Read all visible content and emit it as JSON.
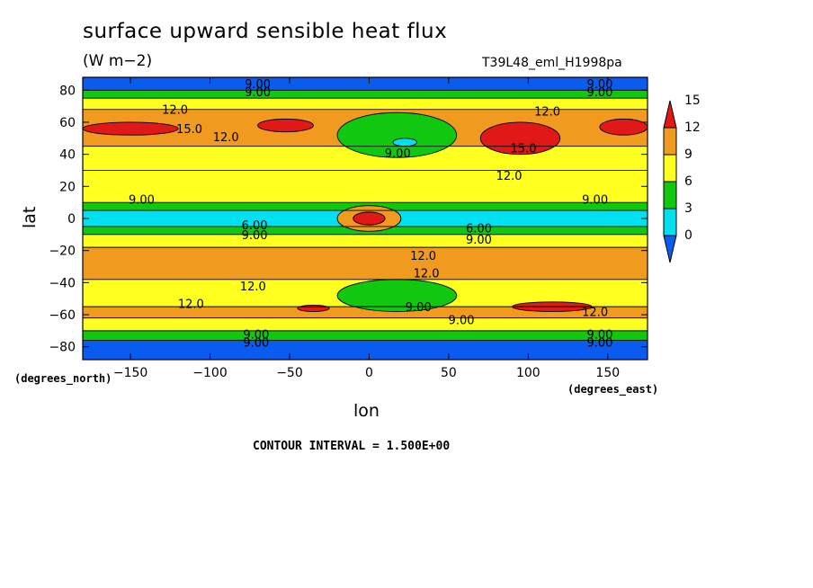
{
  "chart_data": {
    "type": "heatmap",
    "title": "surface upward sensible heat flux",
    "units": "(W m−2)",
    "experiment": "T39L48_eml_H1998pa",
    "xlabel": "lon",
    "ylabel": "lat",
    "x_unit_label": "(degrees_east)",
    "y_unit_label": "(degrees_north)",
    "xlim": [
      -180,
      175
    ],
    "ylim": [
      -88,
      88
    ],
    "x_ticks": [
      -150,
      -100,
      -50,
      0,
      50,
      100,
      150
    ],
    "x_tick_labels": [
      "−150",
      "−100",
      "−50",
      "0",
      "50",
      "100",
      "150"
    ],
    "y_ticks": [
      -80,
      -60,
      -40,
      -20,
      0,
      20,
      40,
      60,
      80
    ],
    "y_tick_labels": [
      "−80",
      "−60",
      "−40",
      "−20",
      "0",
      "20",
      "40",
      "60",
      "80"
    ],
    "colorbar": {
      "levels": [
        0,
        3,
        6,
        9,
        12,
        15
      ],
      "labels": [
        "0",
        "3",
        "6",
        "9",
        "12",
        "15"
      ],
      "colors": [
        "#0a5cf0",
        "#00e0f0",
        "#10c810",
        "#ffff20",
        "#f09a20",
        "#e01818"
      ]
    },
    "contour_interval_text": "CONTOUR INTERVAL = 1.500E+00",
    "bands": [
      {
        "lat_min": 80,
        "lat_max": 88,
        "value": 1.5
      },
      {
        "lat_min": 75,
        "lat_max": 80,
        "value": 7.5
      },
      {
        "lat_min": 68,
        "lat_max": 75,
        "value": 10.5
      },
      {
        "lat_min": 45,
        "lat_max": 68,
        "value": 12.5
      },
      {
        "lat_min": 30,
        "lat_max": 45,
        "value": 11
      },
      {
        "lat_min": 10,
        "lat_max": 30,
        "value": 10
      },
      {
        "lat_min": 5,
        "lat_max": 10,
        "value": 7.5
      },
      {
        "lat_min": -5,
        "lat_max": 5,
        "value": 4.5
      },
      {
        "lat_min": -10,
        "lat_max": -5,
        "value": 7.5
      },
      {
        "lat_min": -18,
        "lat_max": -10,
        "value": 10.5
      },
      {
        "lat_min": -38,
        "lat_max": -18,
        "value": 12.5
      },
      {
        "lat_min": -55,
        "lat_max": -38,
        "value": 11
      },
      {
        "lat_min": -62,
        "lat_max": -55,
        "value": 12.5
      },
      {
        "lat_min": -70,
        "lat_max": -62,
        "value": 10.5
      },
      {
        "lat_min": -76,
        "lat_max": -70,
        "value": 7.5
      },
      {
        "lat_min": -88,
        "lat_max": -76,
        "value": 1.5
      }
    ],
    "patches": [
      {
        "lon": [
          -180,
          -120
        ],
        "lat": [
          52,
          60
        ],
        "value": 15.5
      },
      {
        "lon": [
          -70,
          -35
        ],
        "lat": [
          54,
          62
        ],
        "value": 15.5
      },
      {
        "lon": [
          70,
          120
        ],
        "lat": [
          40,
          60
        ],
        "value": 15.5
      },
      {
        "lon": [
          145,
          175
        ],
        "lat": [
          52,
          62
        ],
        "value": 15.5
      },
      {
        "lon": [
          -20,
          55
        ],
        "lat": [
          38,
          66
        ],
        "value": 7.5
      },
      {
        "lon": [
          15,
          30
        ],
        "lat": [
          45,
          50
        ],
        "value": 4.5
      },
      {
        "lon": [
          -20,
          55
        ],
        "lat": [
          -58,
          -38
        ],
        "value": 7.5
      },
      {
        "lon": [
          -45,
          -25
        ],
        "lat": [
          -58,
          -54
        ],
        "value": 15.5
      },
      {
        "lon": [
          90,
          140
        ],
        "lat": [
          -58,
          -52
        ],
        "value": 15.5
      },
      {
        "lon": [
          -20,
          20
        ],
        "lat": [
          -8,
          8
        ],
        "value": 13
      },
      {
        "lon": [
          -10,
          10
        ],
        "lat": [
          -4,
          4
        ],
        "value": 15.5
      }
    ],
    "contour_labels": [
      {
        "text": "9.00",
        "lon": -70,
        "lat": 84
      },
      {
        "text": "9.00",
        "lon": 145,
        "lat": 84
      },
      {
        "text": "9.00",
        "lon": -70,
        "lat": 79
      },
      {
        "text": "9.00",
        "lon": 145,
        "lat": 79
      },
      {
        "text": "12.0",
        "lon": -122,
        "lat": 68
      },
      {
        "text": "12.0",
        "lon": 112,
        "lat": 67
      },
      {
        "text": "15.0",
        "lon": -113,
        "lat": 56
      },
      {
        "text": "12.0",
        "lon": -90,
        "lat": 51
      },
      {
        "text": "15.0",
        "lon": 97,
        "lat": 44
      },
      {
        "text": "9.00",
        "lon": 18,
        "lat": 41
      },
      {
        "text": "12.0",
        "lon": 88,
        "lat": 27
      },
      {
        "text": "9.00",
        "lon": -143,
        "lat": 12
      },
      {
        "text": "9.00",
        "lon": 142,
        "lat": 12
      },
      {
        "text": "6.00",
        "lon": -72,
        "lat": -4
      },
      {
        "text": "6.00",
        "lon": 69,
        "lat": -6
      },
      {
        "text": "9.00",
        "lon": -72,
        "lat": -10
      },
      {
        "text": "9.00",
        "lon": 69,
        "lat": -13
      },
      {
        "text": "12.0",
        "lon": 34,
        "lat": -23
      },
      {
        "text": "12.0",
        "lon": 36,
        "lat": -34
      },
      {
        "text": "12.0",
        "lon": -73,
        "lat": -42
      },
      {
        "text": "12.0",
        "lon": -112,
        "lat": -53
      },
      {
        "text": "9.00",
        "lon": 31,
        "lat": -55
      },
      {
        "text": "9.00",
        "lon": 58,
        "lat": -63
      },
      {
        "text": "12.0",
        "lon": 142,
        "lat": -58
      },
      {
        "text": "9.00",
        "lon": -71,
        "lat": -72
      },
      {
        "text": "9.00",
        "lon": 145,
        "lat": -72
      },
      {
        "text": "9.00",
        "lon": -71,
        "lat": -77
      },
      {
        "text": "9.00",
        "lon": 145,
        "lat": -77
      }
    ]
  }
}
